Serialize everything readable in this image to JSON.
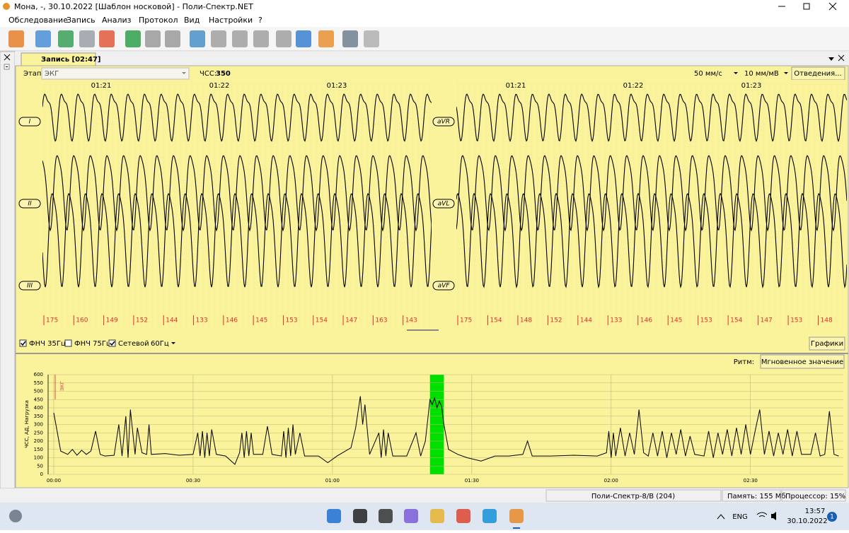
{
  "window": {
    "title": "Мона, -, 30.10.2022 [Шаблон носковой] - Поли-Спектр.NET"
  },
  "menu": [
    "Обследование",
    "Запись",
    "Анализ",
    "Протокол",
    "Вид",
    "Настройки",
    "?"
  ],
  "tab": {
    "title": "Запись [02:47]"
  },
  "ecg": {
    "stage_label": "Этап:",
    "stage": "ЭКГ",
    "hr_label": "ЧСС:",
    "hr": 350,
    "speed": "50 мм/с",
    "gain": "10 мм/мВ",
    "leads_button": "Отведения...",
    "times_left": [
      "01:21",
      "01:22",
      "01:23"
    ],
    "times_right": [
      "01:21",
      "01:22",
      "01:23"
    ],
    "leads_left": [
      "I",
      "II",
      "III"
    ],
    "leads_right": [
      "aVR",
      "aVL",
      "aVF"
    ],
    "rr_left": [
      175,
      160,
      149,
      152,
      144,
      133,
      146,
      145,
      153,
      154,
      147,
      163,
      143
    ],
    "rr_right": [
      175,
      154,
      148,
      152,
      144,
      133,
      146,
      145,
      153,
      154,
      147,
      153,
      148
    ]
  },
  "filters": {
    "lpf35": "ФНЧ 35Гц",
    "lpf35_checked": true,
    "lpf75": "ФНЧ 75Гц",
    "lpf75_checked": false,
    "mains": "Сетевой",
    "mains_checked": true,
    "mains_freq": "60Гц",
    "graphs_button": "Графики"
  },
  "rhythm": {
    "label": "Ритм:",
    "mode": "Мгновенное значение"
  },
  "chart_data": {
    "type": "line",
    "y_label": "ЧСС, АД, Нагрузка",
    "annotation": "ЭКГ",
    "annotation_color": "#e05050",
    "x": [
      0,
      1.5,
      3,
      4,
      5,
      6,
      7,
      8,
      9,
      10,
      11,
      13,
      14,
      14.7,
      15.5,
      16,
      16.5,
      17.5,
      18,
      19,
      20,
      20.5,
      21,
      24,
      27,
      30,
      31,
      31.5,
      32,
      32.5,
      33,
      33.5,
      34,
      35,
      37,
      39,
      40,
      40.5,
      41,
      41.5,
      42,
      42.5,
      43,
      45,
      46,
      47,
      49,
      49.5,
      50,
      50.5,
      51,
      51.5,
      52,
      53,
      54,
      57,
      59,
      61,
      64,
      65,
      66,
      66.5,
      67,
      68,
      70,
      70.5,
      71,
      71.5,
      72,
      73,
      76,
      78,
      79,
      80,
      81,
      81.5,
      82,
      82.5,
      83,
      83.5,
      84,
      85,
      87,
      89,
      92,
      95,
      98,
      101,
      102,
      103,
      107,
      112,
      117,
      119,
      119.5,
      120,
      120.5,
      121,
      122,
      123,
      124,
      125,
      126,
      127,
      128,
      129,
      130,
      131,
      132,
      133,
      134,
      135,
      136,
      137,
      138,
      140,
      141,
      142,
      143,
      144,
      145,
      146,
      147,
      148,
      149,
      150,
      151,
      152,
      153,
      154,
      155,
      156,
      157,
      158,
      159,
      160,
      161,
      163,
      164,
      165,
      166,
      167,
      168,
      169
    ],
    "series": [
      {
        "name": "ЧСС",
        "color": "#000000",
        "values": [
          370,
          140,
          120,
          150,
          115,
          145,
          120,
          140,
          260,
          120,
          110,
          115,
          300,
          110,
          350,
          100,
          390,
          120,
          280,
          130,
          120,
          300,
          120,
          125,
          115,
          120,
          250,
          110,
          260,
          100,
          250,
          110,
          270,
          120,
          110,
          60,
          130,
          250,
          100,
          260,
          110,
          250,
          120,
          120,
          290,
          120,
          110,
          260,
          100,
          280,
          110,
          300,
          120,
          250,
          110,
          110,
          70,
          110,
          160,
          280,
          470,
          300,
          420,
          120,
          250,
          100,
          270,
          110,
          250,
          110,
          110,
          250,
          110,
          200,
          450,
          420,
          460,
          400,
          440,
          410,
          300,
          150,
          120,
          100,
          80,
          110,
          110,
          120,
          200,
          110,
          110,
          115,
          110,
          130,
          260,
          100,
          250,
          110,
          280,
          110,
          250,
          120,
          390,
          130,
          110,
          250,
          110,
          260,
          100,
          250,
          120,
          270,
          110,
          230,
          120,
          110,
          260,
          100,
          250,
          120,
          270,
          110,
          280,
          120,
          300,
          120,
          260,
          390,
          120,
          260,
          110,
          250,
          120,
          270,
          110,
          260,
          120,
          120,
          250,
          110,
          120,
          380,
          120,
          110
        ]
      }
    ],
    "xlim": [
      0,
      170
    ],
    "ylim": [
      0,
      600
    ],
    "xticks": [
      {
        "value": 0,
        "label": "00:00"
      },
      {
        "value": 30,
        "label": "00:30"
      },
      {
        "value": 60,
        "label": "01:00"
      },
      {
        "value": 90,
        "label": "01:30"
      },
      {
        "value": 120,
        "label": "02:00"
      },
      {
        "value": 150,
        "label": "02:30"
      }
    ],
    "yticks": [
      0,
      50,
      100,
      150,
      200,
      250,
      300,
      350,
      400,
      450,
      500,
      550,
      600
    ],
    "grid": true,
    "selection": {
      "start": 81,
      "end": 84,
      "color": "#00e000"
    }
  },
  "status": {
    "device": "Поли-Спектр-8/В (204)",
    "memory": "Память: 155 Мб",
    "cpu": "Процессор: 15%"
  },
  "taskbar": {
    "lang": "ENG",
    "time": "13:57",
    "date": "30.10.2022",
    "notifications": 1
  }
}
